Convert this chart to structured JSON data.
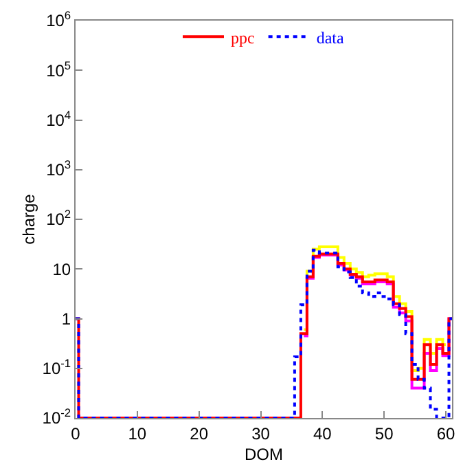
{
  "chart_data": {
    "type": "step",
    "xlabel": "DOM",
    "ylabel": "charge",
    "x": [
      0,
      1,
      2,
      3,
      4,
      5,
      6,
      7,
      8,
      9,
      10,
      11,
      12,
      13,
      14,
      15,
      16,
      17,
      18,
      19,
      20,
      21,
      22,
      23,
      24,
      25,
      26,
      27,
      28,
      29,
      30,
      31,
      32,
      33,
      34,
      35,
      36,
      37,
      38,
      39,
      40,
      41,
      42,
      43,
      44,
      45,
      46,
      47,
      48,
      49,
      50,
      51,
      52,
      53,
      54,
      55,
      56,
      57,
      58,
      59,
      60,
      61
    ],
    "series": [
      {
        "color": "#ffff00",
        "line_style": "solid",
        "values": [
          null,
          null,
          null,
          null,
          null,
          null,
          null,
          null,
          null,
          null,
          null,
          null,
          null,
          null,
          null,
          null,
          null,
          null,
          null,
          null,
          null,
          null,
          null,
          null,
          null,
          null,
          null,
          null,
          null,
          null,
          null,
          null,
          null,
          null,
          null,
          null,
          null,
          0.6,
          9,
          25,
          28,
          28,
          28,
          17,
          13,
          10,
          8.5,
          7,
          7.5,
          8,
          8,
          7,
          2.8,
          2,
          1.4,
          0.09,
          0.1,
          0.38,
          0.2,
          0.38,
          0.3,
          null
        ]
      },
      {
        "color": "#ff00ff",
        "line_style": "solid",
        "values": [
          null,
          null,
          null,
          null,
          null,
          null,
          null,
          null,
          null,
          null,
          null,
          null,
          null,
          null,
          null,
          null,
          null,
          null,
          null,
          null,
          null,
          null,
          null,
          null,
          null,
          null,
          null,
          null,
          null,
          null,
          null,
          null,
          null,
          null,
          null,
          null,
          null,
          0.45,
          6.5,
          17,
          19,
          19,
          19,
          12,
          9.5,
          7.5,
          6.5,
          5,
          5,
          5.5,
          5.5,
          5,
          1.7,
          1.3,
          0.9,
          0.04,
          0.04,
          0.2,
          0.09,
          0.25,
          0.18,
          1
        ]
      },
      {
        "name": "ppc",
        "color": "#ff0000",
        "line_style": "solid",
        "values": [
          1,
          0.01,
          0.01,
          0.01,
          0.01,
          0.01,
          0.01,
          0.01,
          0.01,
          0.01,
          0.01,
          0.01,
          0.01,
          0.01,
          0.01,
          0.01,
          0.01,
          0.01,
          0.01,
          0.01,
          0.01,
          0.01,
          0.01,
          0.01,
          0.01,
          0.01,
          0.01,
          0.01,
          0.01,
          0.01,
          0.01,
          0.01,
          0.01,
          0.01,
          0.01,
          0.01,
          0.01,
          0.5,
          7,
          18,
          20,
          20,
          20,
          13,
          10,
          7.8,
          7,
          5.5,
          5.5,
          6,
          6,
          5.5,
          2,
          1.6,
          1.1,
          0.06,
          0.06,
          0.3,
          0.12,
          0.3,
          0.2,
          1
        ]
      },
      {
        "name": "data",
        "color": "#0000ff",
        "line_style": "dotted",
        "values": [
          1,
          0.01,
          0.01,
          0.01,
          0.01,
          0.01,
          0.01,
          0.01,
          0.01,
          0.01,
          0.01,
          0.01,
          0.01,
          0.01,
          0.01,
          0.01,
          0.01,
          0.01,
          0.01,
          0.01,
          0.01,
          0.01,
          0.01,
          0.01,
          0.01,
          0.01,
          0.01,
          0.01,
          0.01,
          0.01,
          0.01,
          0.01,
          0.01,
          0.01,
          0.01,
          0.01,
          0.17,
          1.9,
          9,
          24,
          21,
          21,
          21,
          11,
          8.7,
          6.7,
          4.5,
          3.3,
          2.8,
          3.3,
          2.8,
          2.5,
          1.9,
          1.2,
          0.5,
          0.12,
          0.06,
          0.04,
          0.015,
          0.01,
          0.01,
          1
        ]
      }
    ],
    "xlim": [
      0,
      61
    ],
    "xticks": [
      0,
      10,
      20,
      30,
      40,
      50,
      60
    ],
    "ylim": [
      0.01,
      1000000
    ],
    "log": "y",
    "yticks": [
      {
        "value": 0.01,
        "label": "10$^{-2}$"
      },
      {
        "value": 0.1,
        "label": "10$^{-1}$"
      },
      1,
      10,
      {
        "value": 100,
        "label": "10$^{2}$"
      },
      {
        "value": 1000,
        "label": "10$^{3}$"
      },
      {
        "value": 10000,
        "label": "10$^{4}$"
      },
      {
        "value": 100000,
        "label": "10$^{5}$"
      },
      {
        "value": 1000000,
        "label": "10$^{6}$"
      }
    ],
    "legend": "top"
  }
}
